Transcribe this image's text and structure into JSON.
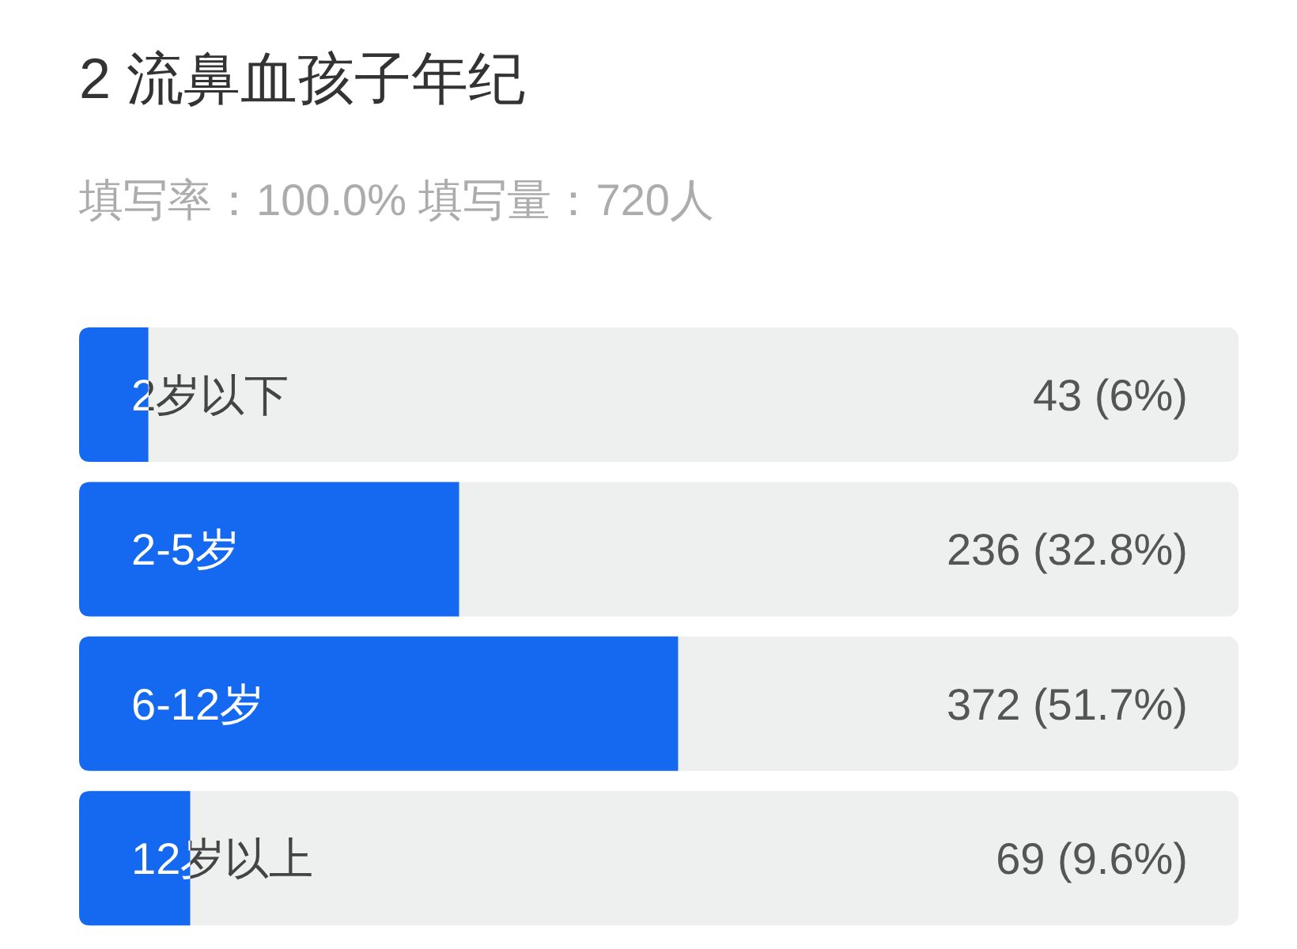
{
  "chart_data": {
    "type": "bar",
    "orientation": "horizontal",
    "title": "2 流鼻血孩子年纪",
    "subtitle": "填写率：100.0% 填写量：720人",
    "categories": [
      "2岁以下",
      "2-5岁",
      "6-12岁",
      "12岁以上"
    ],
    "values": [
      43,
      236,
      372,
      69
    ],
    "value_labels": [
      "43 (6%)",
      "236 (32.8%)",
      "372 (51.7%)",
      "69 (9.6%)"
    ],
    "color": "#1469f0",
    "xlim": [
      0,
      720
    ],
    "tick_labels": "y"
  }
}
